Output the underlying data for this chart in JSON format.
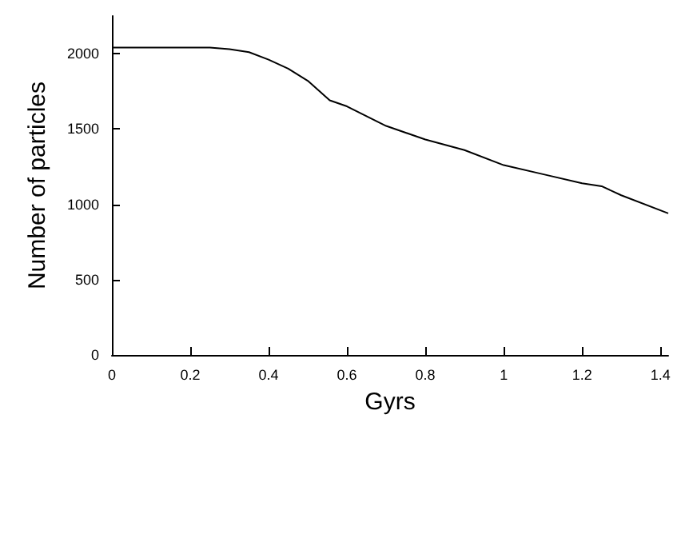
{
  "chart_data": {
    "type": "line",
    "xlabel": "Gyrs",
    "ylabel": "Number of particles",
    "x": [
      0,
      0.1,
      0.2,
      0.25,
      0.3,
      0.35,
      0.4,
      0.45,
      0.5,
      0.556,
      0.6,
      0.7,
      0.8,
      0.9,
      1.0,
      1.1,
      1.2,
      1.25,
      1.3,
      1.42
    ],
    "series": [
      {
        "color": "#000000",
        "values": [
          2040,
          2040,
          2040,
          2040,
          2030,
          2010,
          1960,
          1900,
          1820,
          1690,
          1650,
          1520,
          1430,
          1360,
          1260,
          1200,
          1140,
          1120,
          1060,
          940
        ]
      }
    ],
    "xlim": [
      0,
      1.42
    ],
    "xticks": [
      0,
      0.2,
      0.4,
      0.6,
      0.8,
      1,
      1.2,
      1.4
    ],
    "ylim": [
      0,
      2250
    ],
    "yticks": [
      0,
      500,
      1000,
      1500,
      2000
    ],
    "grid": false,
    "marker": "none",
    "line_style": "solid"
  }
}
